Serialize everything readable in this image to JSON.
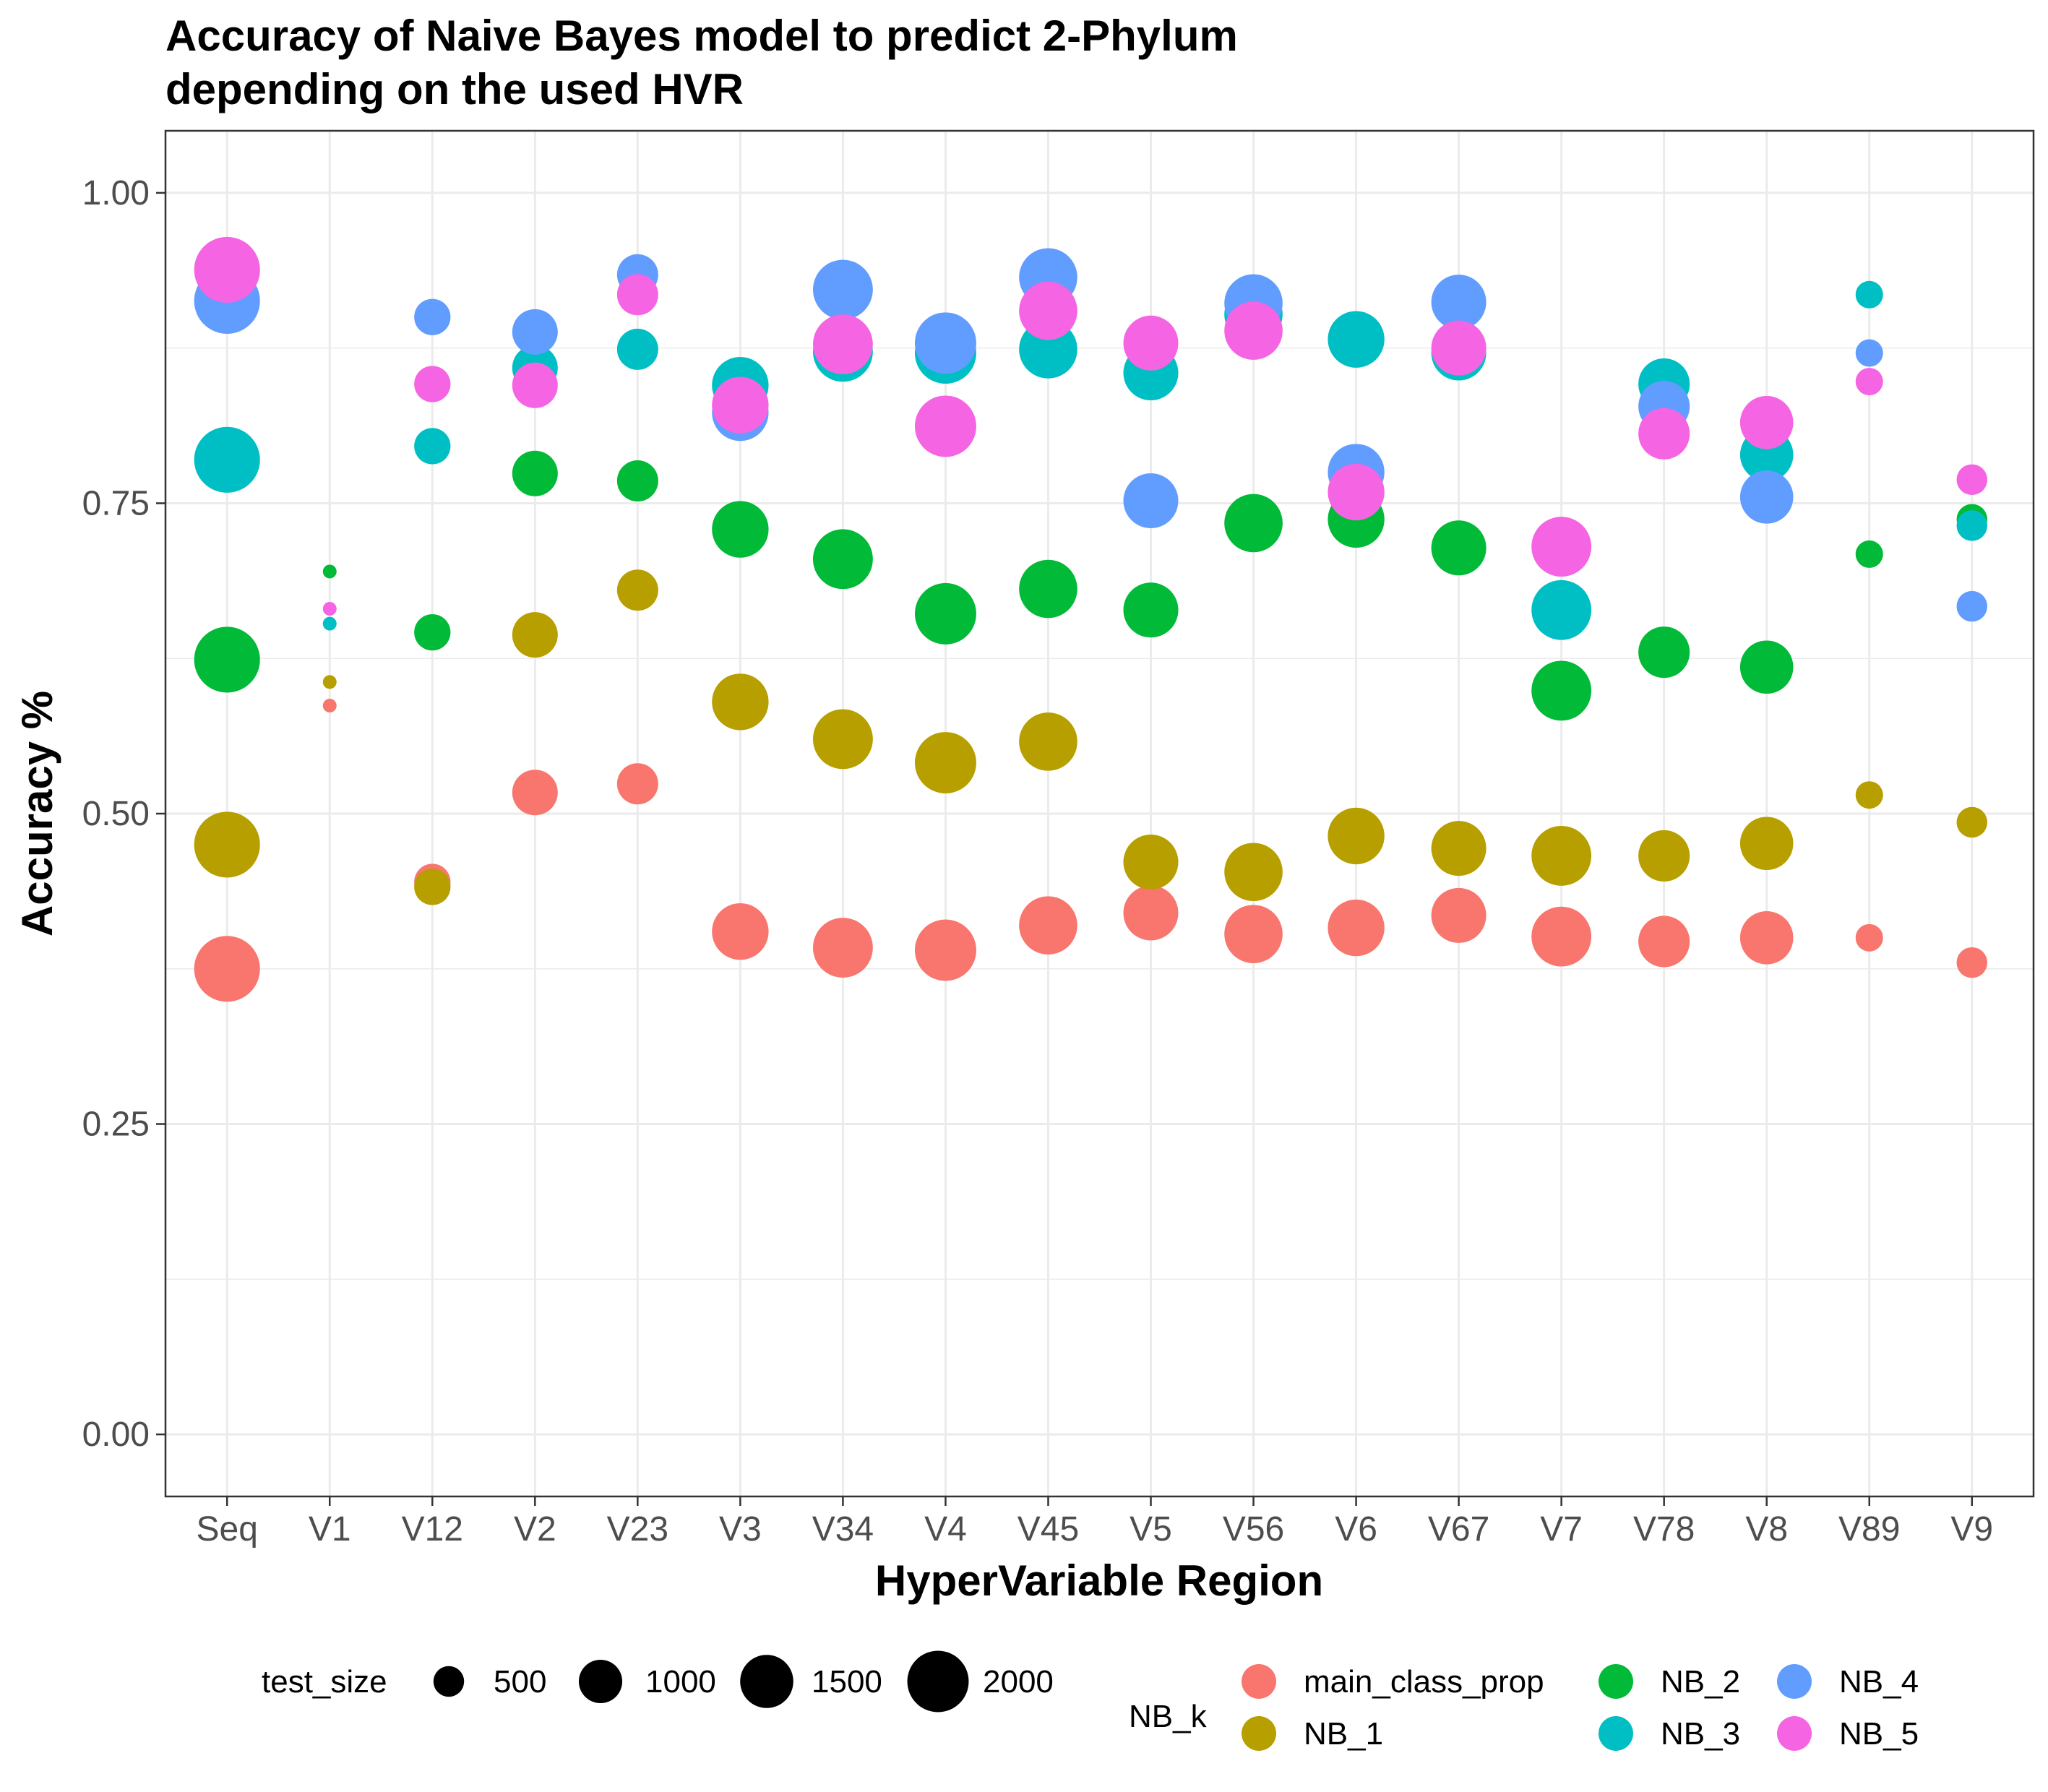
{
  "chart_data": {
    "type": "scatter",
    "title_lines": [
      "Accuracy of Naive Bayes model to predict 2-Phylum",
      "depending on the used HVR"
    ],
    "xlabel": "HyperVariable Region",
    "ylabel": "Accuracy %",
    "ylim": [
      -0.05,
      1.05
    ],
    "y_ticks": [
      0.0,
      0.25,
      0.5,
      0.75,
      1.0
    ],
    "y_tick_labels": [
      "0.00",
      "0.25",
      "0.50",
      "0.75",
      "1.00"
    ],
    "grid": true,
    "categories": [
      "Seq",
      "V1",
      "V12",
      "V2",
      "V23",
      "V3",
      "V34",
      "V4",
      "V45",
      "V5",
      "V56",
      "V6",
      "V67",
      "V7",
      "V78",
      "V8",
      "V89",
      "V9"
    ],
    "test_size": [
      2300,
      100,
      700,
      1100,
      900,
      1700,
      1900,
      2000,
      1800,
      1600,
      1800,
      1700,
      1600,
      1900,
      1400,
      1500,
      400,
      500
    ],
    "size_legend": {
      "title": "test_size",
      "labels": [
        "500",
        "1000",
        "1500",
        "2000"
      ],
      "values": [
        500,
        1000,
        1500,
        2000
      ]
    },
    "color_legend": {
      "title": "NB_k",
      "placement": "bottom"
    },
    "series": [
      {
        "name": "main_class_prop",
        "color": "#F8766D",
        "values": [
          0.375,
          0.587,
          0.445,
          0.517,
          0.524,
          0.405,
          0.392,
          0.39,
          0.41,
          0.42,
          0.403,
          0.408,
          0.418,
          0.401,
          0.397,
          0.4,
          0.4,
          0.38
        ]
      },
      {
        "name": "NB_1",
        "color": "#B79F00",
        "values": [
          0.475,
          0.606,
          0.441,
          0.644,
          0.68,
          0.59,
          0.56,
          0.541,
          0.558,
          0.461,
          0.453,
          0.482,
          0.472,
          0.466,
          0.466,
          0.476,
          0.515,
          0.493
        ]
      },
      {
        "name": "NB_2",
        "color": "#00BA38",
        "values": [
          0.624,
          0.695,
          0.646,
          0.774,
          0.768,
          0.729,
          0.705,
          0.661,
          0.681,
          0.664,
          0.734,
          0.737,
          0.714,
          0.599,
          0.63,
          0.618,
          0.709,
          0.737
        ]
      },
      {
        "name": "NB_3",
        "color": "#00BFC4",
        "values": [
          0.785,
          0.653,
          0.796,
          0.859,
          0.874,
          0.845,
          0.872,
          0.871,
          0.874,
          0.855,
          0.902,
          0.882,
          0.871,
          0.664,
          0.846,
          0.789,
          0.918,
          0.732
        ]
      },
      {
        "name": "NB_4",
        "color": "#619CFF",
        "values": [
          0.913,
          null,
          0.9,
          0.888,
          0.934,
          0.823,
          0.922,
          0.879,
          0.932,
          0.752,
          0.911,
          0.775,
          0.912,
          null,
          0.828,
          0.755,
          0.871,
          0.667
        ]
      },
      {
        "name": "NB_5",
        "color": "#F564E3",
        "values": [
          0.938,
          0.665,
          0.846,
          0.845,
          0.918,
          0.829,
          0.878,
          0.812,
          0.905,
          0.879,
          0.889,
          0.759,
          0.875,
          0.715,
          0.806,
          0.815,
          0.848,
          0.769
        ]
      }
    ]
  }
}
